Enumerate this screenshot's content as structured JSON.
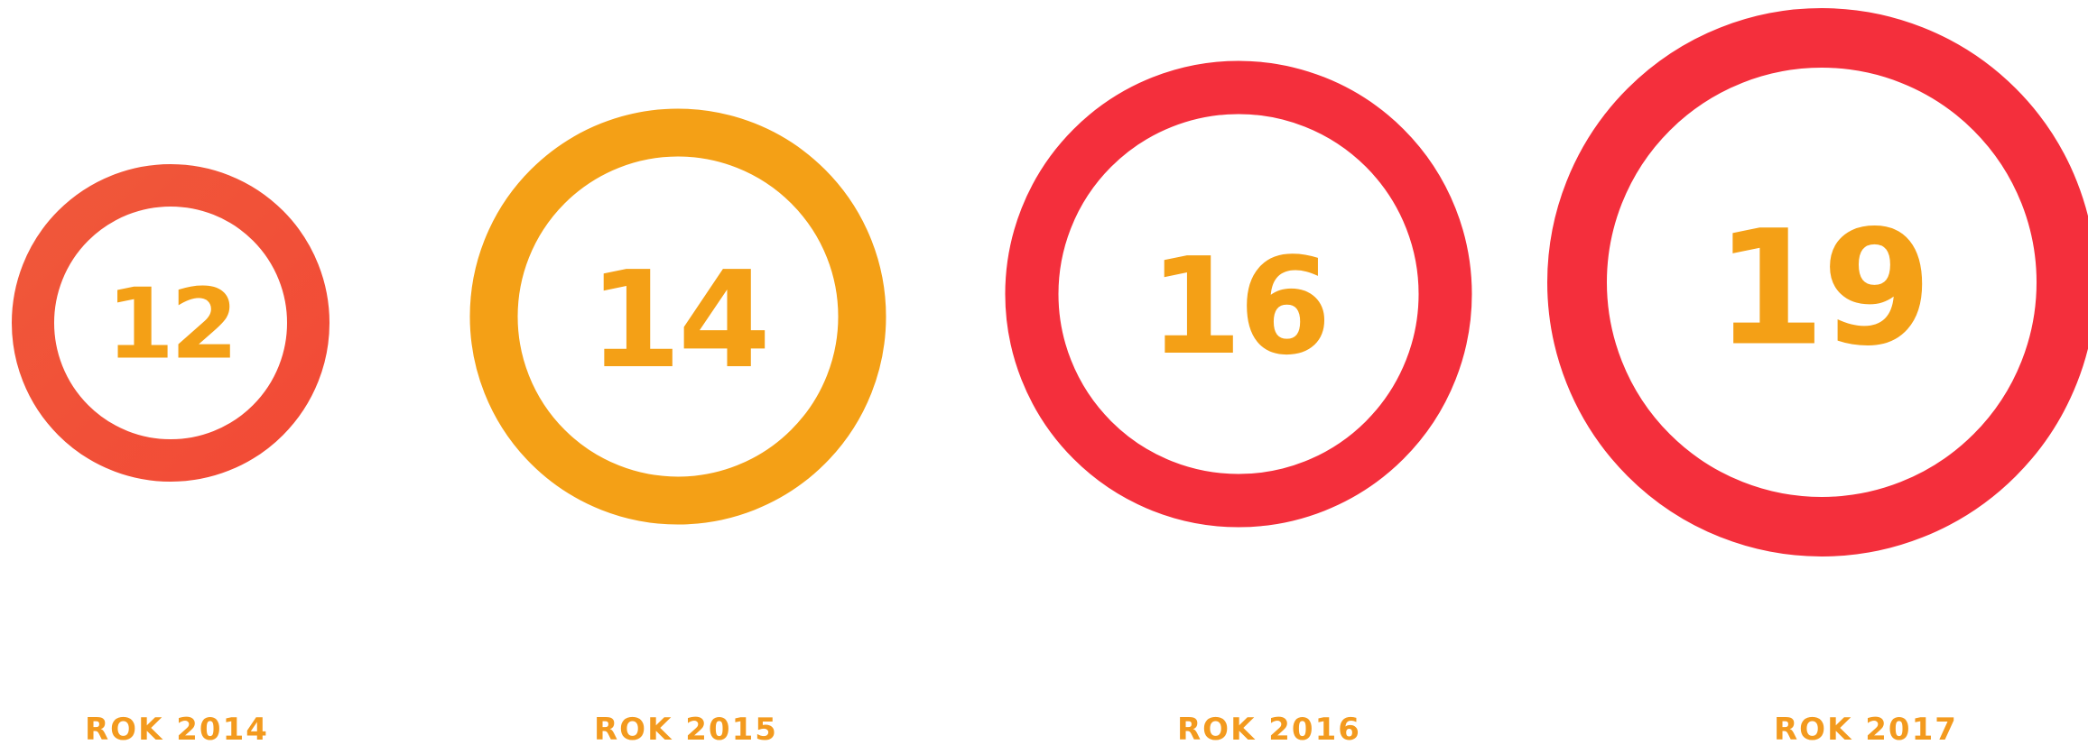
{
  "items": [
    {
      "value": "12",
      "label": "ROK 2014"
    },
    {
      "value": "14",
      "label": "ROK 2015"
    },
    {
      "value": "16",
      "label": "ROK 2016"
    },
    {
      "value": "19",
      "label": "ROK 2017"
    }
  ]
}
